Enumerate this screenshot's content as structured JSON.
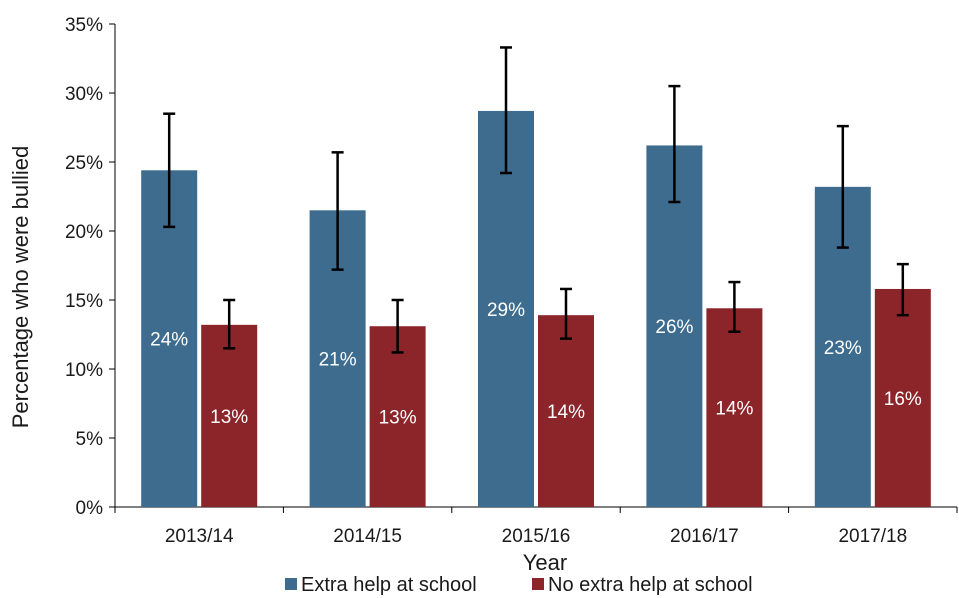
{
  "chart_data": {
    "type": "bar",
    "categories": [
      "2013/14",
      "2014/15",
      "2015/16",
      "2016/17",
      "2017/18"
    ],
    "series": [
      {
        "name": "Extra help at school",
        "color": "#3e6c8e",
        "values": [
          24.4,
          21.5,
          28.7,
          26.2,
          23.2
        ],
        "error_low": [
          20.3,
          17.2,
          24.2,
          22.1,
          18.8
        ],
        "error_high": [
          28.5,
          25.7,
          33.3,
          30.5,
          27.6
        ],
        "labels": [
          "24%",
          "21%",
          "29%",
          "26%",
          "23%"
        ]
      },
      {
        "name": "No extra help at school",
        "color": "#8b2529",
        "values": [
          13.2,
          13.1,
          13.9,
          14.4,
          15.8
        ],
        "error_low": [
          11.5,
          11.2,
          12.2,
          12.7,
          13.9
        ],
        "error_high": [
          15.0,
          15.0,
          15.8,
          16.3,
          17.6
        ],
        "labels": [
          "13%",
          "13%",
          "14%",
          "14%",
          "16%"
        ]
      }
    ],
    "xlabel": "Year",
    "ylabel": "Percentage who were bullied",
    "ylim": [
      0,
      35
    ],
    "yticks": [
      "0%",
      "5%",
      "10%",
      "15%",
      "20%",
      "25%",
      "30%",
      "35%"
    ],
    "grid": false,
    "legend_position": "bottom"
  }
}
